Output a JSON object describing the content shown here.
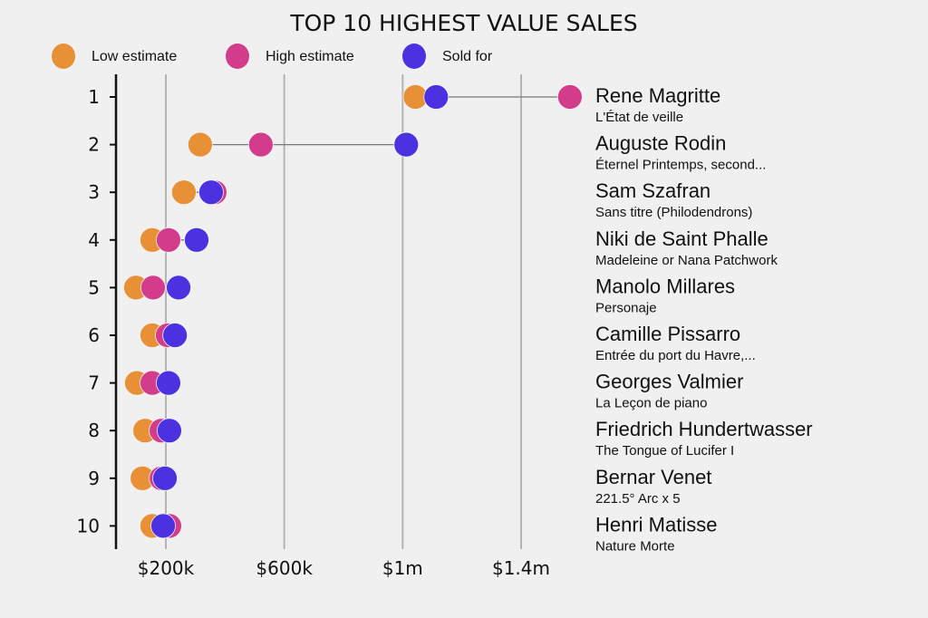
{
  "chart_data": {
    "type": "scatter",
    "subtype": "dot-plot",
    "title": "TOP 10 HIGHEST VALUE SALES",
    "xlabel": "",
    "ylabel": "",
    "xlim": [
      30000,
      1650000
    ],
    "xticks": [
      {
        "value": 200000,
        "label": "$200k"
      },
      {
        "value": 600000,
        "label": "$600k"
      },
      {
        "value": 1000000,
        "label": "$1m"
      },
      {
        "value": 1400000,
        "label": "$1.4m"
      }
    ],
    "grid": "vertical",
    "legend_position": "top",
    "series": [
      {
        "name": "Low estimate",
        "key": "low",
        "color": "#e89035"
      },
      {
        "name": "High estimate",
        "key": "high",
        "color": "#d23c8a"
      },
      {
        "name": "Sold for",
        "key": "sold",
        "color": "#4a32e0"
      }
    ],
    "rows": [
      {
        "rank": "1",
        "artist": "Rene Magritte",
        "work": "L'État de veille",
        "low": 1043000,
        "high": 1565000,
        "sold": 1113000
      },
      {
        "rank": "2",
        "artist": "Auguste Rodin",
        "work": "Éternel Printemps, second...",
        "low": 316000,
        "high": 521000,
        "sold": 1012000
      },
      {
        "rank": "3",
        "artist": "Sam Szafran",
        "work": "Sans titre (Philodendrons)",
        "low": 261000,
        "high": 365000,
        "sold": 353000
      },
      {
        "rank": "4",
        "artist": "Niki de Saint Phalle",
        "work": "Madeleine or Nana Patchwork",
        "low": 154000,
        "high": 209000,
        "sold": 304000
      },
      {
        "rank": "5",
        "artist": "Manolo Millares",
        "work": "Personaje",
        "low": 99000,
        "high": 157000,
        "sold": 243000
      },
      {
        "rank": "6",
        "artist": "Camille Pissarro",
        "work": "Entrée du port du Havre,...",
        "low": 154000,
        "high": 206000,
        "sold": 231000
      },
      {
        "rank": "7",
        "artist": "Georges Valmier",
        "work": "La Leçon de piano",
        "low": 102000,
        "high": 154000,
        "sold": 209000
      },
      {
        "rank": "8",
        "artist": "Friedrich Hundertwasser",
        "work": "The Tongue of Lucifer I",
        "low": 130000,
        "high": 185000,
        "sold": 212000
      },
      {
        "rank": "9",
        "artist": "Bernar Venet",
        "work": "221.5° Arc x 5",
        "low": 121000,
        "high": 185000,
        "sold": 197000
      },
      {
        "rank": "10",
        "artist": "Henri Matisse",
        "work": "Nature Morte",
        "low": 154000,
        "high": 212000,
        "sold": 191000
      }
    ]
  }
}
